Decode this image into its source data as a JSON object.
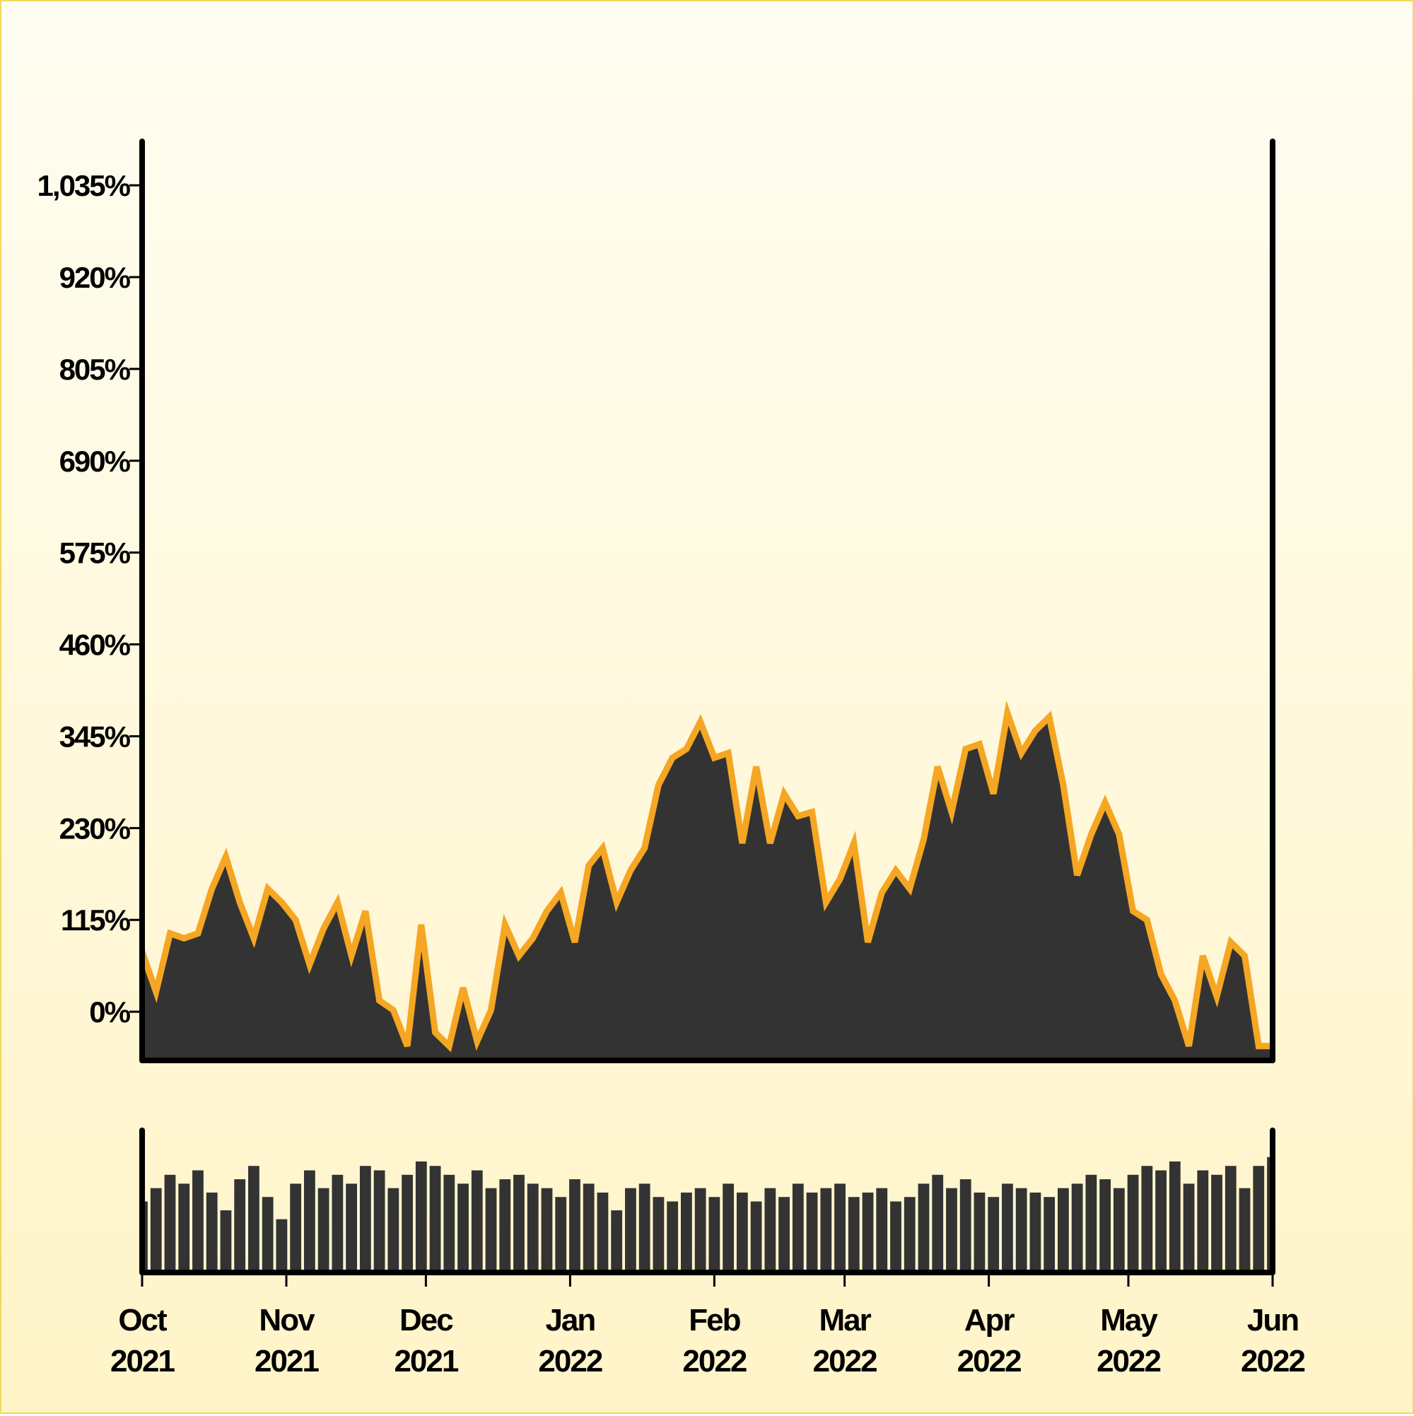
{
  "chart_data": {
    "type": "area",
    "x": [
      0,
      3,
      6,
      9,
      12,
      15,
      18,
      21,
      24,
      27,
      30,
      33,
      36,
      39,
      42,
      45,
      48,
      51,
      54,
      57,
      60,
      63,
      66,
      69,
      72,
      75,
      78,
      81,
      84,
      87,
      90,
      93,
      96,
      99,
      102,
      105,
      108,
      111,
      114,
      117,
      120,
      123,
      126,
      129,
      132,
      135,
      138,
      141,
      144,
      147,
      150,
      153,
      156,
      159,
      162,
      165,
      168,
      171,
      174,
      177,
      180,
      183,
      186,
      189,
      192,
      195,
      198,
      201,
      204,
      207,
      210,
      213,
      216,
      219,
      222,
      225,
      228,
      231,
      234,
      237,
      240,
      243
    ],
    "values": [
      75,
      25,
      98,
      92,
      98,
      154,
      194,
      137,
      92,
      154,
      137,
      115,
      59,
      104,
      137,
      70,
      126,
      14,
      2,
      -43,
      109,
      -26,
      -43,
      30,
      -37,
      2,
      109,
      70,
      92,
      126,
      149,
      87,
      183,
      205,
      137,
      177,
      205,
      284,
      318,
      329,
      363,
      318,
      324,
      211,
      307,
      211,
      273,
      245,
      250,
      137,
      166,
      211,
      87,
      149,
      177,
      154,
      216,
      307,
      250,
      329,
      335,
      273,
      374,
      324,
      352,
      369,
      284,
      171,
      222,
      262,
      222,
      126,
      115,
      47,
      14,
      -43,
      70,
      19,
      87,
      70,
      -43,
      -43
    ],
    "color": "#333333",
    "line_color": "#f5a623",
    "xlim": [
      0,
      243
    ],
    "xticks": [
      {
        "value": 0,
        "label": "Oct 2021"
      },
      {
        "value": 31,
        "label": "Nov 2021"
      },
      {
        "value": 61,
        "label": "Dec 2021"
      },
      {
        "value": 92,
        "label": "Jan 2022"
      },
      {
        "value": 123,
        "label": "Feb 2022"
      },
      {
        "value": 151,
        "label": "Mar 2022"
      },
      {
        "value": 182,
        "label": "Apr 2022"
      },
      {
        "value": 212,
        "label": "May 2022"
      },
      {
        "value": 243,
        "label": "Jun 2022"
      }
    ],
    "ylim": [
      -61,
      1090
    ],
    "yticks": [
      {
        "value": 0,
        "label": "0%"
      },
      {
        "value": 115,
        "label": "115%"
      },
      {
        "value": 230,
        "label": "230%"
      },
      {
        "value": 345,
        "label": "345%"
      },
      {
        "value": 460,
        "label": "460%"
      },
      {
        "value": 575,
        "label": "575%"
      },
      {
        "value": 690,
        "label": "690%"
      },
      {
        "value": 805,
        "label": "805%"
      },
      {
        "value": 920,
        "label": "920%"
      },
      {
        "value": 1035,
        "label": "1,035%"
      }
    ],
    "volume": {
      "color": "#333333",
      "ylim": [
        0,
        160
      ],
      "values": [
        80,
        95,
        110,
        100,
        115,
        90,
        70,
        105,
        120,
        85,
        60,
        100,
        115,
        95,
        110,
        100,
        120,
        115,
        95,
        110,
        125,
        120,
        110,
        100,
        115,
        95,
        105,
        110,
        100,
        95,
        85,
        105,
        100,
        90,
        70,
        95,
        100,
        85,
        80,
        90,
        95,
        85,
        100,
        90,
        80,
        95,
        85,
        100,
        90,
        95,
        100,
        85,
        90,
        95,
        80,
        85,
        100,
        110,
        95,
        105,
        90,
        85,
        100,
        95,
        90,
        85,
        95,
        100,
        110,
        105,
        95,
        110,
        120,
        115,
        125,
        100,
        115,
        110,
        120,
        95,
        120,
        130
      ]
    }
  }
}
